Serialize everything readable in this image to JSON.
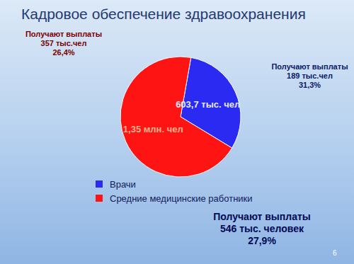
{
  "chart_data": {
    "type": "pie",
    "title": "Кадровое обеспечение здравоохранения",
    "categories": [
      "Врачи",
      "Средние медицинские работники"
    ],
    "values": [
      603.7,
      1350
    ],
    "value_labels": [
      "603,7 тыс. чел",
      "1,35 млн. чел"
    ],
    "colors": [
      "#2a2af2",
      "#ff1414"
    ],
    "data_labels": true,
    "legend": "bottom",
    "annotations": [
      [
        "Получают выплаты",
        "189 тыс.чел",
        "31,3%"
      ],
      [
        "Получают выплаты",
        "357 тыс.чел",
        "26,4%"
      ],
      [
        "Получают выплаты",
        "546 тыс. человек",
        "27,9%"
      ]
    ],
    "slide_number": "6"
  }
}
